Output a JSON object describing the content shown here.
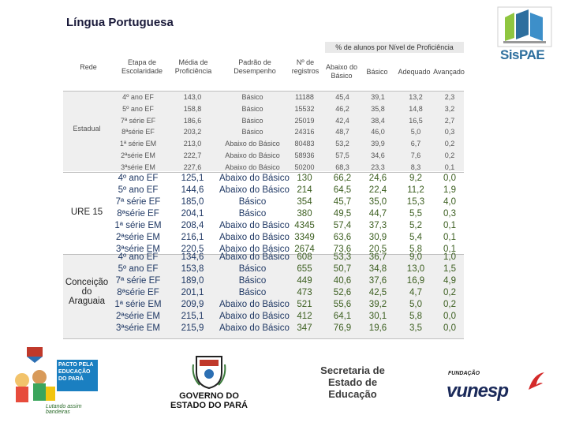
{
  "title": "Língua Portuguesa",
  "logo_sispae": "SisPAE",
  "header": {
    "span_label": "% de alunos por Nível de Proficiência",
    "rede": "Rede",
    "etapa": "Etapa de Escolaridade",
    "media": "Média de Proficiência",
    "padrao": "Padrão de Desempenho",
    "registros": "Nº de registros",
    "abaixo_basico": "Abaixo do Básico",
    "basico": "Básico",
    "adequado": "Adequado",
    "avancado": "Avançado"
  },
  "groups": [
    {
      "rede": "Estadual",
      "style": "small",
      "rows": [
        [
          "4º ano EF",
          "143,0",
          "Básico",
          "11188",
          "45,4",
          "39,1",
          "13,2",
          "2,3"
        ],
        [
          "5º ano EF",
          "158,8",
          "Básico",
          "15532",
          "46,2",
          "35,8",
          "14,8",
          "3,2"
        ],
        [
          "7ª série EF",
          "186,6",
          "Básico",
          "25019",
          "42,4",
          "38,4",
          "16,5",
          "2,7"
        ],
        [
          "8ªsérie EF",
          "203,2",
          "Básico",
          "24316",
          "48,7",
          "46,0",
          "5,0",
          "0,3"
        ],
        [
          "1ª série EM",
          "213,0",
          "Abaixo do Básico",
          "80483",
          "53,2",
          "39,9",
          "6,7",
          "0,2"
        ],
        [
          "2ªsérie EM",
          "222,7",
          "Abaixo do Básico",
          "58936",
          "57,5",
          "34,6",
          "7,6",
          "0,2"
        ],
        [
          "3ªsérie EM",
          "227,6",
          "Abaixo do Básico",
          "50200",
          "68,3",
          "23,3",
          "8,3",
          "0,1"
        ]
      ]
    },
    {
      "rede": "URE 15",
      "style": "big",
      "rows": [
        [
          "4º ano EF",
          "125,1",
          "Abaixo do Básico",
          "130",
          "66,2",
          "24,6",
          "9,2",
          "0,0"
        ],
        [
          "5º ano EF",
          "144,6",
          "Abaixo do Básico",
          "214",
          "64,5",
          "22,4",
          "11,2",
          "1,9"
        ],
        [
          "7ª série EF",
          "185,0",
          "Básico",
          "354",
          "45,7",
          "35,0",
          "15,3",
          "4,0"
        ],
        [
          "8ªsérie EF",
          "204,1",
          "Básico",
          "380",
          "49,5",
          "44,7",
          "5,5",
          "0,3"
        ],
        [
          "1ª série EM",
          "208,4",
          "Abaixo do Básico",
          "4345",
          "57,4",
          "37,3",
          "5,2",
          "0,1"
        ],
        [
          "2ªsérie EM",
          "216,1",
          "Abaixo do Básico",
          "3349",
          "63,6",
          "30,9",
          "5,4",
          "0,1"
        ],
        [
          "3ªsérie EM",
          "220,5",
          "Abaixo do Básico",
          "2674",
          "73,6",
          "20,5",
          "5,8",
          "0,1"
        ]
      ]
    },
    {
      "rede": "Conceição do Araguaia",
      "style": "big",
      "rows": [
        [
          "4º ano EF",
          "134,6",
          "Abaixo do Básico",
          "608",
          "53,3",
          "36,7",
          "9,0",
          "1,0"
        ],
        [
          "5º ano EF",
          "153,8",
          "Básico",
          "655",
          "50,7",
          "34,8",
          "13,0",
          "1,5"
        ],
        [
          "7ª série EF",
          "189,0",
          "Básico",
          "449",
          "40,6",
          "37,6",
          "16,9",
          "4,9"
        ],
        [
          "8ªsérie EF",
          "201,1",
          "Básico",
          "473",
          "52,6",
          "42,5",
          "4,7",
          "0,2"
        ],
        [
          "1ª série EM",
          "209,9",
          "Abaixo do Básico",
          "521",
          "55,6",
          "39,2",
          "5,0",
          "0,2"
        ],
        [
          "2ªsérie EM",
          "215,1",
          "Abaixo do Básico",
          "412",
          "64,1",
          "30,1",
          "5,8",
          "0,0"
        ],
        [
          "3ªsérie EM",
          "215,9",
          "Abaixo do Básico",
          "347",
          "76,9",
          "19,6",
          "3,5",
          "0,0"
        ]
      ]
    }
  ],
  "footer": {
    "pacto_text": "PACTO PELA EDUCAÇÃO DO PARÁ",
    "pacto_slogan": "Lutando assim bandeiras",
    "gov_line1": "GOVERNO DO",
    "gov_line2": "ESTADO DO PARÁ",
    "sec_line1": "Secretaria de",
    "sec_line2": "Estado de",
    "sec_line3": "Educação",
    "vunesp_fundacao": "FUNDAÇÃO",
    "vunesp_name": "vunesp"
  },
  "colors": {
    "sispae_blue": "#2e6f9e",
    "table_text_blue": "#1f3864",
    "table_text_green": "#3b5e1f",
    "vunesp_red": "#d42a2a"
  }
}
